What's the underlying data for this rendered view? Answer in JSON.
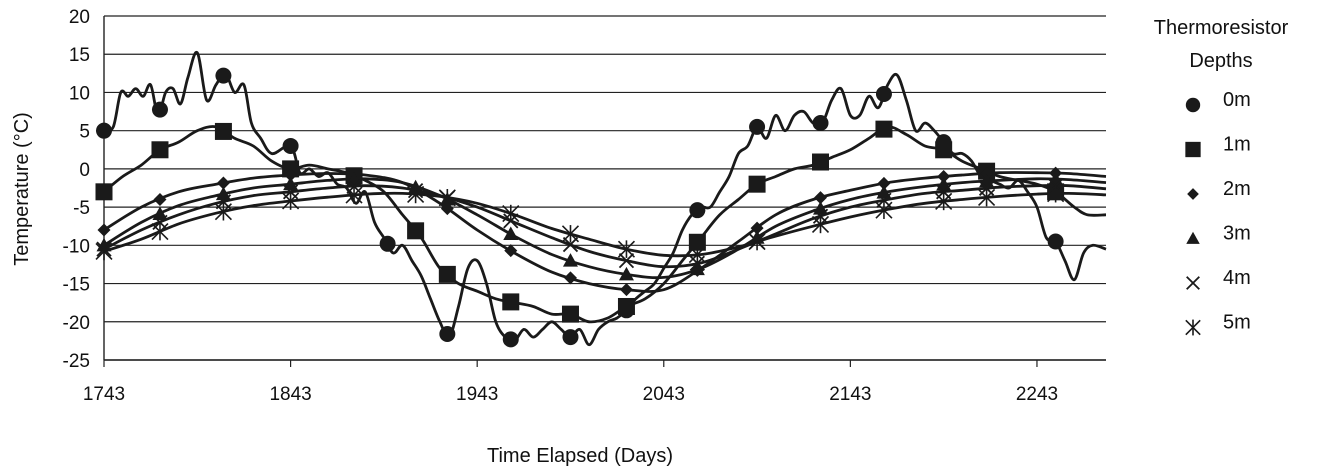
{
  "chart_data": {
    "type": "line",
    "title": "",
    "xlabel": "Time Elapsed (Days)",
    "ylabel": "Temperature (°C)",
    "xlim": [
      1743,
      2280
    ],
    "ylim": [
      -25,
      20
    ],
    "x_ticks": [
      1743,
      1843,
      1943,
      2043,
      2143,
      2243
    ],
    "x_tick_labels": [
      "1743",
      "1843",
      "1943",
      "2043",
      "2143",
      "2243"
    ],
    "y_ticks": [
      -25,
      -20,
      -15,
      -10,
      -5,
      0,
      5,
      10,
      15,
      20
    ],
    "y_tick_labels": [
      "-25",
      "-20",
      "-15",
      "-10",
      "-5",
      "0",
      "5",
      "10",
      "15",
      "20"
    ],
    "grid": "horizontal",
    "legend": {
      "title_lines": [
        "Thermoresistor",
        "Depths"
      ],
      "position": "right"
    },
    "line_color": "#1a1a1a",
    "series": [
      {
        "name": "0m",
        "marker": "circle",
        "points": [
          [
            1743,
            5
          ],
          [
            1748,
            5.5
          ],
          [
            1752,
            10
          ],
          [
            1756,
            9.5
          ],
          [
            1760,
            10.5
          ],
          [
            1764,
            9.5
          ],
          [
            1768,
            11
          ],
          [
            1772,
            7
          ],
          [
            1776,
            10
          ],
          [
            1780,
            10.5
          ],
          [
            1784,
            8.5
          ],
          [
            1788,
            12
          ],
          [
            1793,
            15.2
          ],
          [
            1798,
            9
          ],
          [
            1803,
            11
          ],
          [
            1808,
            12.5
          ],
          [
            1813,
            10
          ],
          [
            1818,
            11
          ],
          [
            1822,
            6
          ],
          [
            1827,
            4
          ],
          [
            1833,
            2
          ],
          [
            1843,
            3
          ],
          [
            1848,
            -0.5
          ],
          [
            1853,
            0
          ],
          [
            1858,
            -1
          ],
          [
            1863,
            -0.5
          ],
          [
            1868,
            -2
          ],
          [
            1873,
            -2.5
          ],
          [
            1878,
            -4.5
          ],
          [
            1883,
            -3
          ],
          [
            1888,
            -7
          ],
          [
            1893,
            -9
          ],
          [
            1898,
            -11
          ],
          [
            1903,
            -10
          ],
          [
            1908,
            -12
          ],
          [
            1913,
            -14
          ],
          [
            1918,
            -17
          ],
          [
            1923,
            -20
          ],
          [
            1928,
            -22
          ],
          [
            1933,
            -18
          ],
          [
            1938,
            -13
          ],
          [
            1943,
            -12
          ],
          [
            1948,
            -15
          ],
          [
            1953,
            -20
          ],
          [
            1958,
            -22
          ],
          [
            1963,
            -22.5
          ],
          [
            1968,
            -21
          ],
          [
            1973,
            -22
          ],
          [
            1978,
            -21
          ],
          [
            1983,
            -20
          ],
          [
            1988,
            -21
          ],
          [
            1993,
            -22
          ],
          [
            1998,
            -21
          ],
          [
            2003,
            -23
          ],
          [
            2008,
            -21
          ],
          [
            2013,
            -20
          ],
          [
            2018,
            -19.5
          ],
          [
            2023,
            -18.5
          ],
          [
            2028,
            -17
          ],
          [
            2033,
            -16
          ],
          [
            2038,
            -15
          ],
          [
            2043,
            -13
          ],
          [
            2048,
            -11
          ],
          [
            2053,
            -8
          ],
          [
            2058,
            -6
          ],
          [
            2063,
            -5
          ],
          [
            2068,
            -5
          ],
          [
            2073,
            -3
          ],
          [
            2078,
            -1
          ],
          [
            2083,
            2
          ],
          [
            2088,
            3
          ],
          [
            2093,
            5.5
          ],
          [
            2098,
            4
          ],
          [
            2103,
            7
          ],
          [
            2108,
            5
          ],
          [
            2113,
            7
          ],
          [
            2118,
            7.5
          ],
          [
            2123,
            6
          ],
          [
            2128,
            6
          ],
          [
            2133,
            9
          ],
          [
            2138,
            10.5
          ],
          [
            2143,
            7
          ],
          [
            2148,
            7
          ],
          [
            2153,
            9.5
          ],
          [
            2158,
            8
          ],
          [
            2163,
            11
          ],
          [
            2168,
            12.3
          ],
          [
            2173,
            9
          ],
          [
            2178,
            5
          ],
          [
            2183,
            6
          ],
          [
            2188,
            5
          ],
          [
            2193,
            3.5
          ],
          [
            2198,
            2
          ],
          [
            2203,
            2
          ],
          [
            2208,
            1
          ],
          [
            2213,
            -1
          ],
          [
            2218,
            -1.5
          ],
          [
            2223,
            -2
          ],
          [
            2228,
            -2.5
          ],
          [
            2233,
            -1.5
          ],
          [
            2238,
            -3
          ],
          [
            2243,
            -5
          ],
          [
            2248,
            -9
          ],
          [
            2253,
            -9.5
          ],
          [
            2258,
            -12
          ],
          [
            2263,
            -14.5
          ],
          [
            2268,
            -11
          ],
          [
            2273,
            -10
          ],
          [
            2280,
            -10.5
          ]
        ],
        "marker_x": [
          1743,
          1773,
          1807,
          1843,
          1895,
          1927,
          1961,
          1993,
          2023,
          2061,
          2093,
          2127,
          2161,
          2193,
          2253
        ]
      },
      {
        "name": "1m",
        "marker": "square",
        "points": [
          [
            1743,
            -3
          ],
          [
            1753,
            -1
          ],
          [
            1763,
            0.5
          ],
          [
            1773,
            2.5
          ],
          [
            1783,
            3.5
          ],
          [
            1793,
            5
          ],
          [
            1803,
            5.5
          ],
          [
            1813,
            4
          ],
          [
            1823,
            3
          ],
          [
            1833,
            1
          ],
          [
            1843,
            0
          ],
          [
            1853,
            0.5
          ],
          [
            1863,
            0
          ],
          [
            1873,
            -0.5
          ],
          [
            1883,
            -1.5
          ],
          [
            1893,
            -3
          ],
          [
            1903,
            -6
          ],
          [
            1913,
            -9
          ],
          [
            1923,
            -13
          ],
          [
            1933,
            -15
          ],
          [
            1943,
            -16
          ],
          [
            1953,
            -17
          ],
          [
            1963,
            -17.5
          ],
          [
            1973,
            -18
          ],
          [
            1983,
            -19
          ],
          [
            1993,
            -19
          ],
          [
            2003,
            -20
          ],
          [
            2013,
            -19.5
          ],
          [
            2023,
            -18
          ],
          [
            2033,
            -17
          ],
          [
            2043,
            -15
          ],
          [
            2053,
            -12
          ],
          [
            2063,
            -9
          ],
          [
            2073,
            -6
          ],
          [
            2083,
            -4
          ],
          [
            2093,
            -2
          ],
          [
            2103,
            -1
          ],
          [
            2113,
            0
          ],
          [
            2123,
            0.5
          ],
          [
            2133,
            1.5
          ],
          [
            2143,
            2.5
          ],
          [
            2153,
            4
          ],
          [
            2163,
            5.5
          ],
          [
            2173,
            4.5
          ],
          [
            2183,
            3
          ],
          [
            2193,
            2.5
          ],
          [
            2203,
            1
          ],
          [
            2213,
            0
          ],
          [
            2223,
            -1
          ],
          [
            2233,
            -1.5
          ],
          [
            2243,
            -2
          ],
          [
            2253,
            -3
          ],
          [
            2263,
            -5
          ],
          [
            2270,
            -6
          ],
          [
            2280,
            -6
          ]
        ],
        "marker_x": [
          1743,
          1773,
          1807,
          1843,
          1877,
          1910,
          1927,
          1961,
          1993,
          2023,
          2061,
          2093,
          2127,
          2161,
          2193,
          2216,
          2253
        ]
      },
      {
        "name": "2m",
        "marker": "diamond",
        "points": [
          [
            1743,
            -8
          ],
          [
            1763,
            -5
          ],
          [
            1783,
            -3
          ],
          [
            1803,
            -2
          ],
          [
            1823,
            -1.2
          ],
          [
            1843,
            -0.8
          ],
          [
            1863,
            -0.6
          ],
          [
            1883,
            -0.8
          ],
          [
            1903,
            -1.8
          ],
          [
            1923,
            -4.5
          ],
          [
            1943,
            -8
          ],
          [
            1963,
            -11
          ],
          [
            1983,
            -13.5
          ],
          [
            2003,
            -15
          ],
          [
            2023,
            -15.8
          ],
          [
            2043,
            -15.8
          ],
          [
            2063,
            -13
          ],
          [
            2083,
            -9.5
          ],
          [
            2103,
            -6
          ],
          [
            2123,
            -4
          ],
          [
            2143,
            -2.8
          ],
          [
            2163,
            -1.8
          ],
          [
            2183,
            -1.2
          ],
          [
            2203,
            -0.8
          ],
          [
            2223,
            -0.5
          ],
          [
            2243,
            -0.5
          ],
          [
            2260,
            -0.6
          ],
          [
            2280,
            -1
          ]
        ],
        "marker_x": [
          1743,
          1773,
          1807,
          1843,
          1877,
          1910,
          1927,
          1961,
          1993,
          2023,
          2061,
          2093,
          2127,
          2161,
          2193,
          2216,
          2253
        ]
      },
      {
        "name": "3m",
        "marker": "triangle",
        "points": [
          [
            1743,
            -10
          ],
          [
            1763,
            -7
          ],
          [
            1783,
            -4.8
          ],
          [
            1803,
            -3.5
          ],
          [
            1823,
            -2.5
          ],
          [
            1843,
            -2
          ],
          [
            1863,
            -1.5
          ],
          [
            1883,
            -1.3
          ],
          [
            1903,
            -1.8
          ],
          [
            1923,
            -3.5
          ],
          [
            1943,
            -6
          ],
          [
            1963,
            -8.8
          ],
          [
            1983,
            -11.2
          ],
          [
            2003,
            -12.8
          ],
          [
            2023,
            -13.8
          ],
          [
            2043,
            -14.2
          ],
          [
            2063,
            -13
          ],
          [
            2083,
            -10.5
          ],
          [
            2103,
            -7.5
          ],
          [
            2123,
            -5.5
          ],
          [
            2143,
            -4
          ],
          [
            2163,
            -3
          ],
          [
            2183,
            -2.3
          ],
          [
            2203,
            -1.8
          ],
          [
            2223,
            -1.5
          ],
          [
            2243,
            -1.3
          ],
          [
            2260,
            -1.4
          ],
          [
            2280,
            -1.8
          ]
        ],
        "marker_x": [
          1743,
          1773,
          1807,
          1843,
          1877,
          1910,
          1927,
          1961,
          1993,
          2023,
          2061,
          2093,
          2127,
          2161,
          2193,
          2216,
          2253
        ]
      },
      {
        "name": "4m",
        "marker": "x",
        "points": [
          [
            1743,
            -10.5
          ],
          [
            1763,
            -8
          ],
          [
            1783,
            -6
          ],
          [
            1803,
            -4.5
          ],
          [
            1823,
            -3.5
          ],
          [
            1843,
            -3
          ],
          [
            1863,
            -2.5
          ],
          [
            1883,
            -2.2
          ],
          [
            1903,
            -2.5
          ],
          [
            1923,
            -3.5
          ],
          [
            1943,
            -5
          ],
          [
            1963,
            -7
          ],
          [
            1983,
            -9
          ],
          [
            2003,
            -10.8
          ],
          [
            2023,
            -12
          ],
          [
            2043,
            -12.8
          ],
          [
            2063,
            -12.3
          ],
          [
            2083,
            -10.5
          ],
          [
            2103,
            -8.5
          ],
          [
            2123,
            -6.5
          ],
          [
            2143,
            -5
          ],
          [
            2163,
            -4
          ],
          [
            2183,
            -3.2
          ],
          [
            2203,
            -2.8
          ],
          [
            2223,
            -2.4
          ],
          [
            2243,
            -2.2
          ],
          [
            2260,
            -2.2
          ],
          [
            2280,
            -2.6
          ]
        ],
        "marker_x": [
          1743,
          1773,
          1807,
          1843,
          1877,
          1910,
          1927,
          1961,
          1993,
          2023,
          2061,
          2093,
          2127,
          2161,
          2193,
          2216,
          2253
        ]
      },
      {
        "name": "5m",
        "marker": "asterisk",
        "points": [
          [
            1743,
            -10.8
          ],
          [
            1763,
            -9.2
          ],
          [
            1783,
            -7.2
          ],
          [
            1803,
            -5.8
          ],
          [
            1823,
            -4.8
          ],
          [
            1843,
            -4.2
          ],
          [
            1863,
            -3.7
          ],
          [
            1883,
            -3.3
          ],
          [
            1903,
            -3.2
          ],
          [
            1923,
            -3.6
          ],
          [
            1943,
            -4.5
          ],
          [
            1963,
            -6
          ],
          [
            1983,
            -7.8
          ],
          [
            2003,
            -9.2
          ],
          [
            2023,
            -10.5
          ],
          [
            2043,
            -11.3
          ],
          [
            2063,
            -11.2
          ],
          [
            2083,
            -10.2
          ],
          [
            2103,
            -8.8
          ],
          [
            2123,
            -7.5
          ],
          [
            2143,
            -6.3
          ],
          [
            2163,
            -5.3
          ],
          [
            2183,
            -4.5
          ],
          [
            2203,
            -4
          ],
          [
            2223,
            -3.6
          ],
          [
            2243,
            -3.3
          ],
          [
            2260,
            -3.2
          ],
          [
            2280,
            -3.4
          ]
        ],
        "marker_x": [
          1743,
          1773,
          1807,
          1843,
          1877,
          1910,
          1927,
          1961,
          1993,
          2023,
          2061,
          2093,
          2127,
          2161,
          2193,
          2216,
          2253
        ]
      }
    ]
  }
}
